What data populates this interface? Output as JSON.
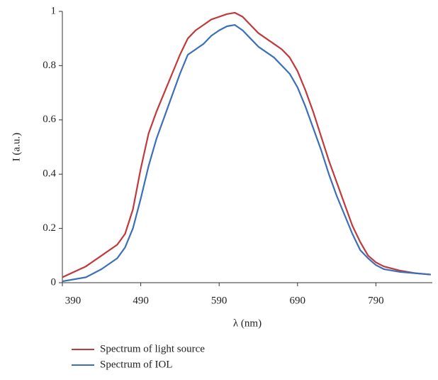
{
  "chart_data": {
    "type": "line",
    "x_label": "λ (nm)",
    "y_label": "I (a.u.)",
    "x": [
      390,
      420,
      440,
      460,
      470,
      480,
      490,
      500,
      510,
      520,
      530,
      540,
      550,
      560,
      570,
      580,
      590,
      600,
      610,
      620,
      630,
      640,
      650,
      660,
      670,
      680,
      690,
      700,
      710,
      720,
      730,
      740,
      750,
      760,
      770,
      780,
      790,
      800,
      820,
      840,
      860
    ],
    "series": [
      {
        "name": "Spectrum of light source",
        "color": "#c0393b",
        "values": [
          0.02,
          0.06,
          0.1,
          0.14,
          0.18,
          0.27,
          0.42,
          0.55,
          0.63,
          0.7,
          0.77,
          0.84,
          0.9,
          0.93,
          0.95,
          0.97,
          0.98,
          0.99,
          0.995,
          0.98,
          0.95,
          0.92,
          0.9,
          0.88,
          0.86,
          0.83,
          0.78,
          0.71,
          0.63,
          0.54,
          0.45,
          0.37,
          0.29,
          0.21,
          0.15,
          0.1,
          0.075,
          0.06,
          0.045,
          0.035,
          0.03
        ]
      },
      {
        "name": "Spectrum of IOL",
        "color": "#3b6fb6",
        "values": [
          0.005,
          0.02,
          0.05,
          0.09,
          0.13,
          0.2,
          0.31,
          0.43,
          0.53,
          0.61,
          0.69,
          0.77,
          0.84,
          0.86,
          0.88,
          0.91,
          0.93,
          0.945,
          0.95,
          0.93,
          0.9,
          0.87,
          0.85,
          0.83,
          0.8,
          0.77,
          0.72,
          0.65,
          0.57,
          0.49,
          0.4,
          0.32,
          0.25,
          0.18,
          0.12,
          0.09,
          0.065,
          0.05,
          0.04,
          0.035,
          0.03
        ]
      }
    ],
    "xlim": [
      390,
      862
    ],
    "xticks": [
      390,
      490,
      590,
      690,
      790
    ],
    "ylim": [
      0,
      1
    ],
    "yticks": [
      0,
      0.2,
      0.4,
      0.6,
      0.8,
      1
    ],
    "grid": false
  }
}
